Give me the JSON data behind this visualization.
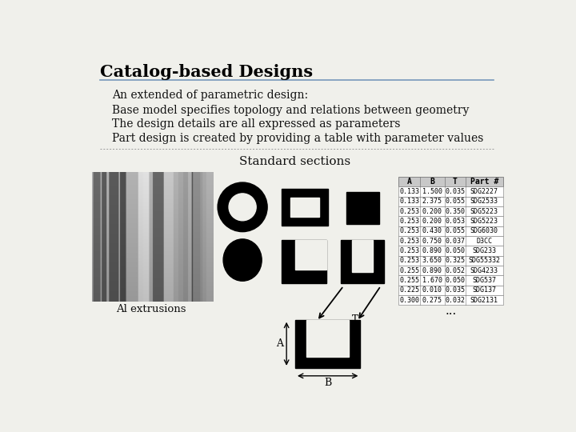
{
  "title": "Catalog-based Designs",
  "bullets": [
    "An extended of parametric design:",
    "Base model specifies topology and relations between geometry",
    "The design details are all expressed as parameters",
    "Part design is created by providing a table with parameter values"
  ],
  "section_label": "Standard sections",
  "al_label": "Al extrusions",
  "table_headers": [
    "A",
    "B",
    "T",
    "Part #"
  ],
  "table_rows": [
    [
      "0.133",
      "1.500",
      "0.035",
      "SDG2227"
    ],
    [
      "0.133",
      "2.375",
      "0.055",
      "SDG2533"
    ],
    [
      "0.253",
      "0.200",
      "0.350",
      "SDG5223"
    ],
    [
      "0.253",
      "0.200",
      "0.053",
      "SDG5223"
    ],
    [
      "0.253",
      "0.430",
      "0.055",
      "SDG6030"
    ],
    [
      "0.253",
      "0.750",
      "0.037",
      "D3CC"
    ],
    [
      "0.253",
      "0.890",
      "0.050",
      "SDG233"
    ],
    [
      "0.253",
      "3.650",
      "0.325",
      "SDG55332"
    ],
    [
      "0.255",
      "0.890",
      "0.052",
      "SDG4233"
    ],
    [
      "0.255",
      "1.670",
      "0.050",
      "SDG537"
    ],
    [
      "0.225",
      "0.010",
      "0.035",
      "SDG137"
    ],
    [
      "0.300",
      "0.275",
      "0.032",
      "SDG2131"
    ]
  ],
  "bg_color": "#f0f0eb",
  "title_color": "#000000",
  "text_color": "#111111",
  "table_header_bg": "#c8c8c8",
  "shape_color": "#000000",
  "title_line_color": "#7799bb",
  "sep_line_color": "#999999"
}
